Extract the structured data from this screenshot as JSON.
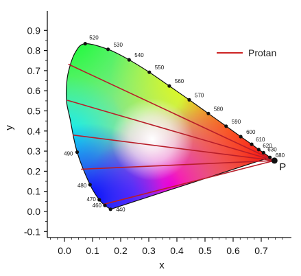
{
  "chart_data": {
    "type": "scatter",
    "title": "",
    "xlabel": "x",
    "ylabel": "y",
    "xlim": [
      -0.05,
      0.79
    ],
    "ylim": [
      -0.12,
      0.9
    ],
    "x_ticks": [
      0.0,
      0.1,
      0.2,
      0.3,
      0.4,
      0.5,
      0.6,
      0.7
    ],
    "x_tick_labels": [
      "0.0",
      "0.1",
      "0.2",
      "0.3",
      "0.4",
      "0.5",
      "0.6",
      "0.7"
    ],
    "y_ticks": [
      -0.1,
      0.0,
      0.1,
      0.2,
      0.3,
      0.4,
      0.5,
      0.6,
      0.7,
      0.8,
      0.9
    ],
    "y_tick_labels": [
      "-0.1",
      "0.0",
      "0.1",
      "0.2",
      "0.3",
      "0.4",
      "0.5",
      "0.6",
      "0.7",
      "0.8",
      "0.9"
    ],
    "grid": false,
    "legend": {
      "position": "top-right",
      "entries": [
        {
          "label": "Protan",
          "color": "#cc2222"
        }
      ]
    },
    "spectral_locus": [
      {
        "label": "440",
        "x": 0.164,
        "y": 0.011
      },
      {
        "label": "460",
        "x": 0.144,
        "y": 0.03
      },
      {
        "label": "470",
        "x": 0.124,
        "y": 0.058
      },
      {
        "label": "480",
        "x": 0.091,
        "y": 0.133
      },
      {
        "label": "490",
        "x": 0.045,
        "y": 0.295
      },
      {
        "label": "",
        "x": 0.02,
        "y": 0.46
      },
      {
        "label": "",
        "x": 0.008,
        "y": 0.54
      },
      {
        "label": "",
        "x": 0.007,
        "y": 0.62
      },
      {
        "label": "",
        "x": 0.015,
        "y": 0.7
      },
      {
        "label": "",
        "x": 0.039,
        "y": 0.792
      },
      {
        "label": "520",
        "x": 0.074,
        "y": 0.834
      },
      {
        "label": "530",
        "x": 0.155,
        "y": 0.806
      },
      {
        "label": "540",
        "x": 0.23,
        "y": 0.754
      },
      {
        "label": "550",
        "x": 0.302,
        "y": 0.692
      },
      {
        "label": "560",
        "x": 0.373,
        "y": 0.624
      },
      {
        "label": "570",
        "x": 0.444,
        "y": 0.555
      },
      {
        "label": "580",
        "x": 0.512,
        "y": 0.487
      },
      {
        "label": "590",
        "x": 0.575,
        "y": 0.424
      },
      {
        "label": "600",
        "x": 0.627,
        "y": 0.372
      },
      {
        "label": "610",
        "x": 0.666,
        "y": 0.334
      },
      {
        "label": "620",
        "x": 0.691,
        "y": 0.308
      },
      {
        "label": "630",
        "x": 0.708,
        "y": 0.292
      },
      {
        "label": "680",
        "x": 0.731,
        "y": 0.269
      }
    ],
    "copunctal_point": {
      "label": "P",
      "x": 0.747,
      "y": 0.253
    },
    "confusion_lines": [
      {
        "series": "Protan",
        "from": [
          0.747,
          0.253
        ],
        "to": [
          0.014,
          0.732
        ]
      },
      {
        "series": "Protan",
        "from": [
          0.747,
          0.253
        ],
        "to": [
          0.01,
          0.553
        ]
      },
      {
        "series": "Protan",
        "from": [
          0.747,
          0.253
        ],
        "to": [
          0.03,
          0.38
        ]
      },
      {
        "series": "Protan",
        "from": [
          0.747,
          0.253
        ],
        "to": [
          0.059,
          0.21
        ]
      },
      {
        "series": "Protan",
        "from": [
          0.747,
          0.253
        ],
        "to": [
          0.138,
          0.035
        ]
      }
    ]
  }
}
